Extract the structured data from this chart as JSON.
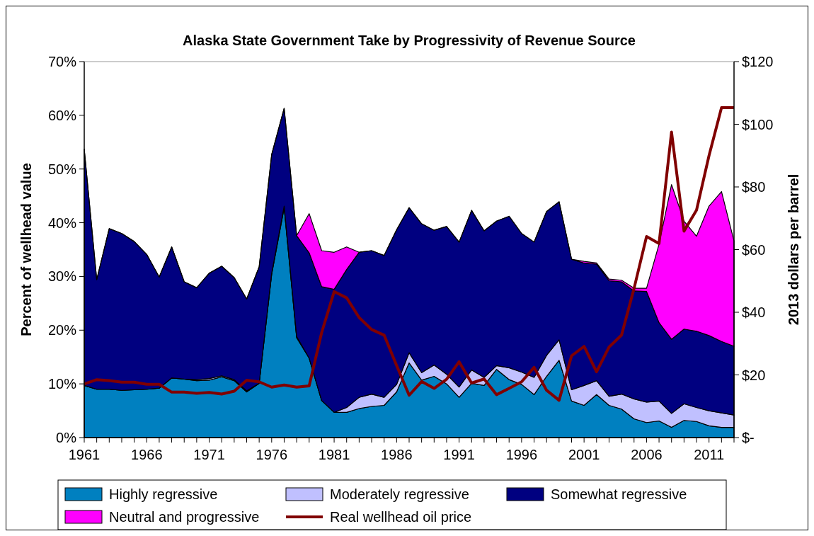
{
  "chart_data": {
    "type": "area",
    "stacked": true,
    "title": "Alaska State Government Take by Progressivity of Revenue Source",
    "ylabel": "Percent of wellhead value",
    "y2label": "2013 dollars per barrel",
    "x": [
      1961,
      1962,
      1963,
      1964,
      1965,
      1966,
      1967,
      1968,
      1969,
      1970,
      1971,
      1972,
      1973,
      1974,
      1975,
      1976,
      1977,
      1978,
      1979,
      1980,
      1981,
      1982,
      1983,
      1984,
      1985,
      1986,
      1987,
      1988,
      1989,
      1990,
      1991,
      1992,
      1993,
      1994,
      1995,
      1996,
      1997,
      1998,
      1999,
      2000,
      2001,
      2002,
      2003,
      2004,
      2005,
      2006,
      2007,
      2008,
      2009,
      2010,
      2011,
      2012,
      2013
    ],
    "xlim": [
      1961,
      2013
    ],
    "xticks": [
      1961,
      {
        "value": 1962,
        "label": null
      },
      {
        "value": 1963,
        "label": null
      },
      {
        "value": 1964,
        "label": null
      },
      {
        "value": 1965,
        "label": null
      },
      1966,
      {
        "value": 1967,
        "label": null
      },
      {
        "value": 1968,
        "label": null
      },
      {
        "value": 1969,
        "label": null
      },
      {
        "value": 1970,
        "label": null
      },
      1971,
      {
        "value": 1972,
        "label": null
      },
      {
        "value": 1973,
        "label": null
      },
      {
        "value": 1974,
        "label": null
      },
      {
        "value": 1975,
        "label": null
      },
      1976,
      {
        "value": 1977,
        "label": null
      },
      {
        "value": 1978,
        "label": null
      },
      {
        "value": 1979,
        "label": null
      },
      {
        "value": 1980,
        "label": null
      },
      1981,
      {
        "value": 1982,
        "label": null
      },
      {
        "value": 1983,
        "label": null
      },
      {
        "value": 1984,
        "label": null
      },
      {
        "value": 1985,
        "label": null
      },
      1986,
      {
        "value": 1987,
        "label": null
      },
      {
        "value": 1988,
        "label": null
      },
      {
        "value": 1989,
        "label": null
      },
      {
        "value": 1990,
        "label": null
      },
      1991,
      {
        "value": 1992,
        "label": null
      },
      {
        "value": 1993,
        "label": null
      },
      {
        "value": 1994,
        "label": null
      },
      {
        "value": 1995,
        "label": null
      },
      1996,
      {
        "value": 1997,
        "label": null
      },
      {
        "value": 1998,
        "label": null
      },
      {
        "value": 1999,
        "label": null
      },
      {
        "value": 2000,
        "label": null
      },
      2001,
      {
        "value": 2002,
        "label": null
      },
      {
        "value": 2003,
        "label": null
      },
      {
        "value": 2004,
        "label": null
      },
      {
        "value": 2005,
        "label": null
      },
      2006,
      {
        "value": 2007,
        "label": null
      },
      {
        "value": 2008,
        "label": null
      },
      {
        "value": 2009,
        "label": null
      },
      {
        "value": 2010,
        "label": null
      },
      2011,
      {
        "value": 2012,
        "label": null
      },
      {
        "value": 2013,
        "label": null
      }
    ],
    "ylim": [
      0,
      70
    ],
    "yticks": [
      {
        "value": 0,
        "label": "0%"
      },
      {
        "value": 10,
        "label": "10%"
      },
      {
        "value": 20,
        "label": "20%"
      },
      {
        "value": 30,
        "label": "30%"
      },
      {
        "value": 40,
        "label": "40%"
      },
      {
        "value": 50,
        "label": "50%"
      },
      {
        "value": 60,
        "label": "60%"
      },
      {
        "value": 70,
        "label": "70%"
      }
    ],
    "y2lim": [
      0,
      120
    ],
    "y2ticks": [
      {
        "value": 0,
        "label": "$-"
      },
      {
        "value": 20,
        "label": "$20"
      },
      {
        "value": 40,
        "label": "$40"
      },
      {
        "value": 60,
        "label": "$60"
      },
      {
        "value": 80,
        "label": "$80"
      },
      {
        "value": 100,
        "label": "$100"
      },
      {
        "value": 120,
        "label": "$120"
      }
    ],
    "legend": "bottom",
    "series": [
      {
        "name": "Highly regressive",
        "color": "#0080c0",
        "values": [
          9.7,
          9.0,
          9.0,
          8.8,
          8.9,
          9.0,
          9.2,
          11.1,
          10.9,
          10.6,
          10.7,
          11.3,
          10.6,
          8.5,
          10.1,
          30.4,
          42.8,
          18.6,
          14.8,
          6.9,
          4.7,
          4.7,
          5.4,
          5.8,
          6.0,
          8.5,
          13.9,
          10.7,
          11.4,
          10.0,
          7.5,
          10.1,
          9.7,
          12.7,
          10.8,
          9.9,
          8.0,
          11.4,
          14.4,
          6.8,
          6.0,
          8.0,
          6.0,
          5.3,
          3.5,
          2.8,
          3.1,
          1.9,
          3.2,
          3.0,
          2.2,
          1.9,
          1.9
        ]
      },
      {
        "name": "Moderately regressive",
        "color": "#c0c0ff",
        "values": [
          0,
          0,
          0,
          0,
          0,
          0,
          0,
          0,
          0,
          0.2,
          0.3,
          0.2,
          0.2,
          0.2,
          0,
          0.2,
          0.3,
          0.2,
          0,
          0,
          0,
          0.9,
          2.1,
          2.3,
          1.5,
          1.4,
          1.9,
          1.4,
          2.1,
          1.8,
          1.9,
          2.5,
          1.5,
          0.7,
          2.2,
          2.3,
          3.2,
          3.9,
          3.8,
          2.1,
          3.7,
          2.6,
          1.7,
          2.8,
          3.7,
          3.8,
          3.7,
          2.6,
          3.1,
          2.6,
          2.8,
          2.7,
          2.3
        ]
      },
      {
        "name": "Somewhat regressive",
        "color": "#000080",
        "values": [
          44.0,
          20.4,
          29.9,
          29.2,
          27.6,
          25.1,
          20.7,
          24.4,
          18.1,
          17.1,
          19.6,
          20.4,
          19.0,
          17.1,
          21.7,
          22.1,
          18.2,
          18.8,
          19.6,
          21.2,
          22.9,
          25.7,
          27.0,
          26.7,
          26.4,
          28.8,
          27.0,
          27.7,
          25.1,
          27.5,
          27.0,
          29.7,
          27.3,
          26.9,
          28.2,
          25.8,
          25.2,
          26.8,
          25.7,
          24.3,
          22.8,
          21.7,
          21.5,
          20.9,
          20.1,
          20.6,
          14.6,
          13.8,
          13.9,
          14.2,
          14.0,
          13.3,
          12.8
        ]
      },
      {
        "name": "Neutral and progressive",
        "color": "#ff00ff",
        "values": [
          0,
          0,
          0,
          0,
          0,
          0,
          0,
          0,
          0,
          0,
          0,
          0,
          0,
          0,
          0,
          0,
          0,
          0,
          7.3,
          6.7,
          6.9,
          4.2,
          0,
          0,
          0,
          0,
          0,
          0,
          0,
          0,
          0,
          0,
          0,
          0,
          0,
          0,
          0,
          0,
          0,
          0,
          0.3,
          0.2,
          0.3,
          0.3,
          0.5,
          0.6,
          14.6,
          28.8,
          20.1,
          17.7,
          24.1,
          27.9,
          19.6
        ]
      },
      {
        "name": "Real wellhead oil price",
        "type": "line",
        "axis": "y2",
        "color": "#800000",
        "values": [
          17.1,
          18.5,
          18.2,
          17.7,
          17.7,
          17.0,
          17.0,
          14.5,
          14.5,
          14.1,
          14.4,
          13.9,
          14.8,
          18.3,
          17.8,
          16.1,
          16.8,
          16.1,
          16.5,
          33.5,
          46.6,
          44.6,
          38.3,
          34.5,
          32.7,
          23.0,
          13.5,
          17.9,
          15.7,
          18.6,
          24.2,
          17.4,
          18.7,
          13.7,
          15.7,
          17.8,
          22.4,
          15.1,
          11.9,
          26.1,
          29.1,
          21.0,
          28.9,
          32.7,
          47.6,
          64.2,
          61.9,
          97.5,
          65.9,
          72.6,
          90.0,
          105.3,
          105.3
        ]
      }
    ]
  }
}
